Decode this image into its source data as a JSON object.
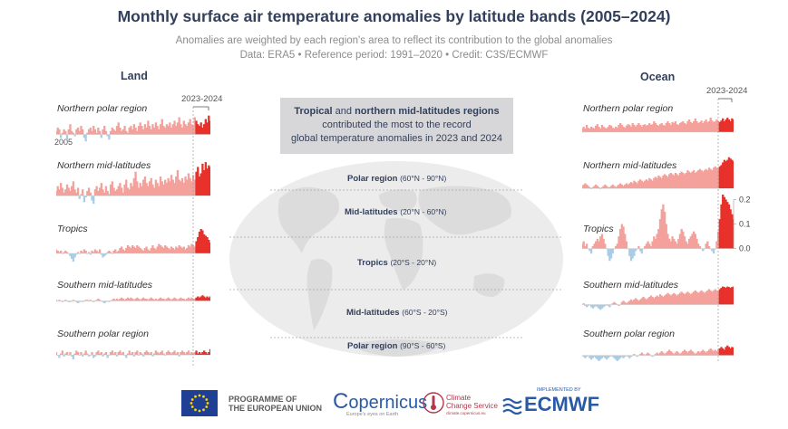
{
  "header": {
    "title": "Monthly surface air temperature anomalies by latitude bands (2005–2024)",
    "subtitle": "Anomalies are weighted by each region's area to reflect its contribution to the global anomalies",
    "data_line": "Data: ERA5 • Reference period: 1991–2020 • Credit: C3S/ECMWF"
  },
  "callout": {
    "bold1": "Tropical",
    "mid1": " and ",
    "bold2": "northern mid-latitudes regions",
    "line2": "contributed the most to the record",
    "line3": "global temperature anomalies in 2023 and 2024"
  },
  "bands": [
    {
      "name": "Polar region",
      "range": "(60°N - 90°N)"
    },
    {
      "name": "Mid-latitudes",
      "range": "(20°N - 60°N)"
    },
    {
      "name": "Tropics",
      "range": "(20°S - 20°N)"
    },
    {
      "name": "Mid-latitudes",
      "range": "(60°S - 20°S)"
    },
    {
      "name": "Polar region",
      "range": "(90°S - 60°S)"
    }
  ],
  "footer": {
    "eu_line1": "PROGRAMME OF",
    "eu_line2": "THE EUROPEAN UNION",
    "copernicus": "opernicus",
    "copernicus_c": "C",
    "copernicus_sub": "Europe's eyes on Earth",
    "c3s_line1": "Climate",
    "c3s_line2": "Change Service",
    "c3s_sub": "climate.copernicus.eu",
    "ecmwf_pre": "IMPLEMENTED BY",
    "ecmwf": "ECMWF"
  },
  "colors": {
    "pos": "#f4a19c",
    "pos_recent": "#e8312a",
    "neg": "#a9cde6",
    "title": "#33405c"
  },
  "chart_data": [
    {
      "type": "area",
      "group": "Land",
      "title": "Northern polar region",
      "start_year": 2005,
      "end_year": 2024,
      "highlight_period": "2023-2024",
      "start_label": "2005",
      "x_unit": "month",
      "ylim": [
        -0.06,
        0.14
      ],
      "values": [
        0.02,
        0.04,
        0.03,
        -0.02,
        0.01,
        0.03,
        0.02,
        -0.03,
        0.03,
        0.06,
        0.02,
        0.01,
        -0.01,
        0.03,
        0.04,
        0.02,
        0.05,
        0.03,
        -0.02,
        -0.04,
        0.01,
        0.03,
        0.04,
        0.02,
        0.05,
        0.03,
        0.01,
        0.04,
        0.02,
        -0.02,
        0.03,
        0.05,
        0.02,
        -0.01,
        -0.03,
        0.02,
        0.04,
        0.03,
        0.02,
        0.05,
        0.07,
        0.04,
        0.02,
        0.03,
        0.05,
        0.02,
        0.01,
        0.04,
        0.05,
        0.03,
        0.06,
        0.04,
        0.02,
        0.05,
        0.07,
        0.05,
        0.03,
        0.06,
        0.04,
        0.08,
        0.05,
        0.03,
        0.06,
        0.04,
        0.07,
        0.05,
        0.03,
        0.06,
        0.09,
        0.05,
        0.04,
        0.06,
        0.05,
        0.07,
        0.04,
        0.06,
        0.08,
        0.05,
        0.07,
        0.1,
        0.06,
        0.04,
        0.08,
        0.06,
        0.05,
        0.07,
        0.09,
        0.06,
        0.05,
        0.1,
        0.08,
        0.06,
        0.05,
        0.07,
        0.04,
        0.06,
        0.09,
        0.07,
        0.11,
        0.08
      ]
    },
    {
      "type": "area",
      "group": "Land",
      "title": "Northern mid-latitudes",
      "start_year": 2005,
      "end_year": 2024,
      "ylim": [
        -0.1,
        0.25
      ],
      "values": [
        0.03,
        0.06,
        0.04,
        0.08,
        0.05,
        0.02,
        0.04,
        0.07,
        0.05,
        0.03,
        0.06,
        0.09,
        0.04,
        0.02,
        0.05,
        -0.02,
        0.01,
        0.04,
        -0.04,
        -0.01,
        0.03,
        0.05,
        0.02,
        -0.03,
        -0.05,
        0.04,
        0.06,
        0.03,
        0.05,
        0.08,
        0.04,
        0.02,
        0.06,
        0.03,
        0.01,
        0.07,
        0.09,
        0.05,
        0.03,
        0.04,
        0.06,
        0.08,
        0.05,
        0.02,
        0.07,
        0.1,
        0.05,
        0.04,
        0.08,
        0.06,
        0.11,
        0.15,
        0.09,
        0.05,
        0.08,
        0.06,
        0.1,
        0.12,
        0.08,
        0.06,
        0.09,
        0.11,
        0.07,
        0.05,
        0.1,
        0.08,
        0.06,
        0.12,
        0.09,
        0.07,
        0.1,
        0.08,
        0.11,
        0.09,
        0.13,
        0.1,
        0.08,
        0.12,
        0.16,
        0.1,
        0.09,
        0.11,
        0.08,
        0.12,
        0.1,
        0.14,
        0.11,
        0.09,
        0.13,
        0.1,
        0.15,
        0.18,
        0.12,
        0.14,
        0.2,
        0.16,
        0.21,
        0.17,
        0.19,
        0.18
      ]
    },
    {
      "type": "area",
      "group": "Land",
      "title": "Tropics",
      "start_year": 2005,
      "end_year": 2024,
      "ylim": [
        -0.08,
        0.2
      ],
      "values": [
        0.03,
        0.02,
        0.01,
        0.02,
        0.0,
        0.01,
        0.02,
        0.01,
        0.0,
        -0.02,
        -0.04,
        -0.06,
        -0.03,
        -0.01,
        0.01,
        0.0,
        0.02,
        0.01,
        0.03,
        0.02,
        0.0,
        0.01,
        -0.01,
        0.02,
        0.01,
        0.03,
        0.02,
        0.01,
        0.03,
        -0.01,
        -0.03,
        -0.02,
        -0.01,
        0.01,
        0.02,
        0.01,
        0.0,
        0.02,
        0.03,
        0.01,
        0.02,
        0.04,
        0.05,
        0.03,
        0.02,
        0.04,
        0.06,
        0.05,
        0.04,
        0.06,
        0.05,
        0.04,
        0.06,
        0.05,
        0.04,
        0.03,
        0.02,
        0.04,
        0.05,
        0.03,
        0.02,
        0.04,
        0.06,
        0.04,
        0.03,
        0.05,
        0.07,
        0.06,
        0.05,
        0.04,
        0.06,
        0.05,
        0.04,
        0.03,
        0.05,
        0.04,
        0.03,
        0.05,
        0.04,
        0.06,
        0.05,
        0.04,
        0.05,
        0.03,
        0.04,
        0.06,
        0.05,
        0.07,
        0.06,
        0.05,
        0.09,
        0.12,
        0.16,
        0.18,
        0.17,
        0.14,
        0.13,
        0.12,
        0.1,
        0.08
      ]
    },
    {
      "type": "area",
      "group": "Land",
      "title": "Southern mid-latitudes",
      "start_year": 2005,
      "end_year": 2024,
      "ylim": [
        -0.06,
        0.1
      ],
      "values": [
        0.01,
        0.0,
        0.01,
        0.0,
        -0.01,
        0.0,
        0.01,
        0.0,
        -0.01,
        -0.01,
        0.0,
        0.01,
        0.0,
        -0.01,
        -0.02,
        -0.01,
        0.0,
        -0.01,
        0.0,
        0.01,
        0.01,
        0.0,
        0.01,
        0.0,
        -0.01,
        0.0,
        0.01,
        0.02,
        0.01,
        0.0,
        -0.01,
        -0.02,
        -0.01,
        0.0,
        -0.01,
        0.0,
        0.01,
        0.02,
        0.01,
        0.02,
        0.01,
        0.02,
        0.03,
        0.02,
        0.01,
        0.02,
        0.03,
        0.02,
        0.03,
        0.02,
        0.01,
        0.02,
        0.03,
        0.02,
        0.01,
        0.02,
        0.03,
        0.02,
        0.02,
        0.01,
        0.02,
        0.03,
        0.02,
        0.01,
        0.02,
        0.01,
        0.02,
        0.03,
        0.02,
        0.02,
        0.01,
        0.02,
        0.03,
        0.02,
        0.01,
        0.02,
        0.03,
        0.02,
        0.01,
        0.02,
        0.03,
        0.02,
        0.02,
        0.01,
        0.02,
        0.03,
        0.02,
        0.03,
        0.02,
        0.02,
        0.03,
        0.04,
        0.03,
        0.04,
        0.05,
        0.04,
        0.03,
        0.04,
        0.03,
        0.04
      ]
    },
    {
      "type": "area",
      "group": "Land",
      "title": "Southern polar region",
      "start_year": 2005,
      "end_year": 2024,
      "ylim": [
        -0.06,
        0.1
      ],
      "values": [
        0.02,
        0.0,
        -0.02,
        0.01,
        0.03,
        -0.01,
        0.01,
        0.02,
        0.0,
        0.02,
        -0.01,
        -0.03,
        0.01,
        0.03,
        0.02,
        0.0,
        0.02,
        -0.01,
        0.01,
        0.03,
        0.01,
        -0.01,
        0.0,
        0.02,
        -0.02,
        -0.01,
        0.02,
        0.03,
        0.01,
        0.02,
        -0.01,
        0.01,
        0.02,
        -0.02,
        0.0,
        0.02,
        0.03,
        0.01,
        0.02,
        -0.01,
        0.02,
        0.03,
        0.01,
        0.02,
        0.0,
        -0.02,
        0.01,
        0.03,
        0.01,
        0.02,
        -0.01,
        0.02,
        0.03,
        0.0,
        0.02,
        0.01,
        -0.01,
        0.02,
        0.03,
        0.02,
        0.01,
        0.02,
        -0.01,
        0.01,
        0.03,
        0.02,
        0.01,
        0.02,
        0.03,
        0.01,
        0.0,
        0.02,
        0.03,
        0.02,
        0.01,
        0.02,
        0.03,
        0.01,
        0.02,
        -0.01,
        0.02,
        0.03,
        0.02,
        0.01,
        0.02,
        0.03,
        0.01,
        0.02,
        0.01,
        0.02,
        0.03,
        0.01,
        0.02,
        0.01,
        0.02,
        0.03,
        0.02,
        0.01,
        0.02,
        0.04
      ]
    },
    {
      "type": "area",
      "group": "Ocean",
      "title": "Northern polar region",
      "start_year": 2005,
      "end_year": 2024,
      "highlight_period": "2023-2024",
      "ylim": [
        -0.02,
        0.06
      ],
      "values": [
        0.01,
        0.015,
        0.01,
        0.02,
        0.012,
        0.01,
        0.015,
        0.012,
        0.01,
        0.018,
        0.022,
        0.015,
        0.01,
        0.02,
        0.015,
        0.012,
        0.01,
        0.015,
        0.02,
        0.018,
        0.012,
        0.01,
        0.015,
        0.012,
        0.02,
        0.025,
        0.02,
        0.015,
        0.012,
        0.018,
        0.022,
        0.02,
        0.015,
        0.025,
        0.02,
        0.015,
        0.02,
        0.025,
        0.02,
        0.015,
        0.02,
        0.022,
        0.018,
        0.02,
        0.025,
        0.02,
        0.022,
        0.03,
        0.025,
        0.02,
        0.018,
        0.022,
        0.025,
        0.02,
        0.018,
        0.025,
        0.03,
        0.025,
        0.02,
        0.028,
        0.025,
        0.03,
        0.022,
        0.02,
        0.025,
        0.028,
        0.03,
        0.025,
        0.022,
        0.03,
        0.035,
        0.028,
        0.025,
        0.03,
        0.038,
        0.03,
        0.025,
        0.028,
        0.032,
        0.025,
        0.03,
        0.035,
        0.028,
        0.03,
        0.04,
        0.032,
        0.028,
        0.03,
        0.035,
        0.03,
        0.028,
        0.032,
        0.038,
        0.03,
        0.035,
        0.04,
        0.035,
        0.03,
        0.038,
        0.035
      ]
    },
    {
      "type": "area",
      "group": "Ocean",
      "title": "Northern mid-latitudes",
      "start_year": 2005,
      "end_year": 2024,
      "ylim": [
        -0.02,
        0.14
      ],
      "values": [
        0.01,
        0.015,
        0.02,
        0.015,
        0.01,
        0.005,
        0.0,
        0.005,
        0.01,
        0.015,
        0.01,
        0.005,
        0.0,
        0.005,
        0.01,
        0.015,
        0.01,
        0.005,
        0.005,
        0.01,
        0.015,
        0.01,
        0.005,
        0.01,
        0.015,
        0.02,
        0.015,
        0.01,
        0.015,
        0.02,
        0.015,
        0.02,
        0.025,
        0.02,
        0.03,
        0.025,
        0.02,
        0.03,
        0.035,
        0.03,
        0.025,
        0.03,
        0.035,
        0.03,
        0.04,
        0.035,
        0.03,
        0.04,
        0.045,
        0.04,
        0.05,
        0.045,
        0.04,
        0.05,
        0.055,
        0.05,
        0.045,
        0.055,
        0.06,
        0.055,
        0.05,
        0.06,
        0.055,
        0.05,
        0.06,
        0.065,
        0.06,
        0.055,
        0.06,
        0.07,
        0.065,
        0.06,
        0.065,
        0.07,
        0.06,
        0.065,
        0.07,
        0.075,
        0.07,
        0.065,
        0.07,
        0.075,
        0.07,
        0.08,
        0.075,
        0.07,
        0.08,
        0.085,
        0.08,
        0.075,
        0.085,
        0.09,
        0.1,
        0.11,
        0.105,
        0.11,
        0.12,
        0.115,
        0.11,
        0.105
      ]
    },
    {
      "type": "area",
      "group": "Ocean",
      "title": "Tropics",
      "start_year": 2005,
      "end_year": 2024,
      "ylim": [
        -0.06,
        0.22
      ],
      "yticks": [
        0.0,
        0.1,
        0.2
      ],
      "ytick_labels": [
        "0.0",
        "0.1",
        "0.2"
      ],
      "values": [
        0.02,
        0.03,
        0.01,
        0.02,
        0.0,
        -0.01,
        -0.02,
        0.01,
        0.02,
        0.03,
        0.04,
        0.03,
        0.05,
        0.06,
        0.04,
        0.02,
        0.0,
        -0.03,
        -0.05,
        -0.04,
        -0.02,
        0.0,
        0.01,
        0.02,
        0.05,
        0.08,
        0.1,
        0.09,
        0.06,
        0.03,
        0.0,
        -0.03,
        -0.05,
        -0.04,
        -0.03,
        -0.01,
        0.0,
        0.01,
        -0.01,
        -0.02,
        0.0,
        0.01,
        0.02,
        0.03,
        0.02,
        0.01,
        0.03,
        0.05,
        0.04,
        0.06,
        0.08,
        0.12,
        0.16,
        0.18,
        0.15,
        0.1,
        0.06,
        0.04,
        0.03,
        0.05,
        0.04,
        0.03,
        0.02,
        0.04,
        0.06,
        0.08,
        0.07,
        0.05,
        0.03,
        0.02,
        0.04,
        0.05,
        0.06,
        0.07,
        0.06,
        0.04,
        0.02,
        0.01,
        0.0,
        -0.01,
        0.0,
        0.02,
        0.03,
        0.01,
        0.0,
        -0.01,
        -0.02,
        0.0,
        0.03,
        0.07,
        0.12,
        0.18,
        0.22,
        0.21,
        0.2,
        0.19,
        0.18,
        0.16,
        0.14,
        0.12
      ]
    },
    {
      "type": "area",
      "group": "Ocean",
      "title": "Southern mid-latitudes",
      "start_year": 2005,
      "end_year": 2024,
      "ylim": [
        -0.04,
        0.1
      ],
      "values": [
        0.0,
        0.005,
        -0.005,
        -0.01,
        -0.005,
        0.0,
        -0.01,
        -0.015,
        -0.01,
        -0.005,
        -0.01,
        -0.015,
        -0.02,
        -0.015,
        -0.01,
        -0.005,
        0.0,
        -0.005,
        -0.01,
        0.0,
        0.005,
        0.01,
        0.005,
        0.0,
        -0.005,
        0.0,
        0.01,
        0.015,
        0.01,
        0.005,
        0.01,
        0.015,
        0.02,
        0.015,
        0.02,
        0.025,
        0.02,
        0.015,
        0.02,
        0.025,
        0.03,
        0.025,
        0.02,
        0.025,
        0.03,
        0.035,
        0.03,
        0.025,
        0.03,
        0.035,
        0.03,
        0.04,
        0.035,
        0.03,
        0.035,
        0.04,
        0.045,
        0.04,
        0.035,
        0.04,
        0.045,
        0.04,
        0.035,
        0.04,
        0.045,
        0.05,
        0.045,
        0.04,
        0.045,
        0.05,
        0.045,
        0.04,
        0.045,
        0.05,
        0.055,
        0.05,
        0.045,
        0.05,
        0.055,
        0.05,
        0.045,
        0.05,
        0.055,
        0.06,
        0.055,
        0.05,
        0.055,
        0.06,
        0.055,
        0.05,
        0.06,
        0.065,
        0.07,
        0.068,
        0.065,
        0.07,
        0.068,
        0.065,
        0.068,
        0.07
      ]
    },
    {
      "type": "area",
      "group": "Ocean",
      "title": "Southern polar region",
      "start_year": 2005,
      "end_year": 2024,
      "ylim": [
        -0.03,
        0.06
      ],
      "values": [
        0.0,
        -0.005,
        -0.01,
        -0.005,
        0.0,
        -0.01,
        -0.015,
        -0.01,
        -0.005,
        -0.01,
        -0.015,
        -0.02,
        -0.015,
        -0.01,
        -0.005,
        -0.01,
        -0.015,
        -0.01,
        -0.005,
        0.0,
        -0.005,
        -0.01,
        -0.015,
        -0.02,
        -0.015,
        -0.01,
        -0.005,
        -0.01,
        -0.005,
        0.0,
        -0.005,
        -0.01,
        -0.005,
        0.0,
        0.005,
        0.0,
        -0.005,
        0.0,
        0.005,
        0.01,
        0.005,
        0.0,
        0.005,
        0.01,
        0.005,
        0.0,
        -0.005,
        0.0,
        0.005,
        0.01,
        0.005,
        0.01,
        0.015,
        0.01,
        0.005,
        0.01,
        0.015,
        0.02,
        0.015,
        0.01,
        0.005,
        0.01,
        0.015,
        0.01,
        0.005,
        0.01,
        0.015,
        0.02,
        0.015,
        0.01,
        0.015,
        0.02,
        0.015,
        0.01,
        0.005,
        0.01,
        0.015,
        0.01,
        0.015,
        0.02,
        0.015,
        0.01,
        0.015,
        0.02,
        0.025,
        0.02,
        0.015,
        0.02,
        0.015,
        0.02,
        0.025,
        0.03,
        0.025,
        0.02,
        0.03,
        0.035,
        0.03,
        0.025,
        0.03,
        0.028
      ]
    }
  ]
}
